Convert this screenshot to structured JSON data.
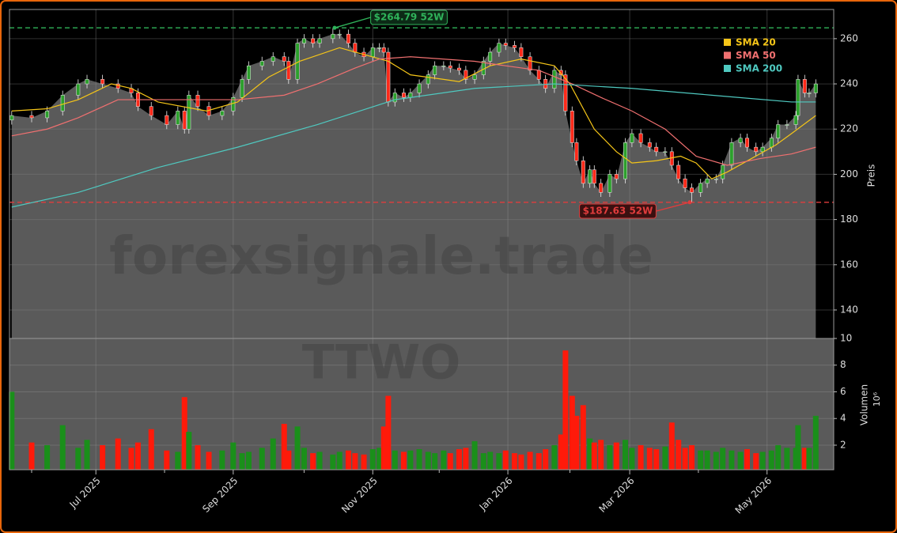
{
  "chart_data": {
    "type": "candlestick",
    "ylabel": "Preis",
    "volume_label": "Volumen",
    "volume_scale_label": "10⁶",
    "watermarks": [
      "forexsignale.trade",
      "TTWO"
    ],
    "up_color": "#2ca02c",
    "down_color": "#ff2a1a",
    "area_color": "#5a5a5a",
    "xlim": [
      0,
      372.1
    ],
    "xticks": [
      {
        "value": 39,
        "label": "Jul 2025"
      },
      {
        "value": 101,
        "label": "Sep 2025"
      },
      {
        "value": 164,
        "label": "Nov 2025"
      },
      {
        "value": 225,
        "label": "Jan 2026"
      },
      {
        "value": 280,
        "label": "Mar 2026"
      },
      {
        "value": 342,
        "label": "May 2026"
      }
    ],
    "xminorticks": [
      10,
      70,
      133,
      194,
      253,
      311
    ],
    "ylim": [
      127.4,
      272.9
    ],
    "yticks": [
      140,
      160,
      180,
      200,
      220,
      240,
      260
    ],
    "volume_ylim": [
      0.16,
      10
    ],
    "volume_yticks": [
      2,
      4,
      6,
      8,
      10
    ],
    "grid": true,
    "x": [
      1,
      10,
      17,
      24,
      31,
      35,
      42,
      49,
      55,
      58,
      64,
      71,
      76,
      79,
      81,
      85,
      90,
      96,
      101,
      105,
      108,
      114,
      119,
      124,
      126,
      130,
      133,
      137,
      140,
      146,
      149,
      153,
      156,
      160,
      164,
      167,
      169,
      171,
      174,
      178,
      181,
      185,
      189,
      192,
      196,
      199,
      203,
      206,
      210,
      214,
      217,
      221,
      224,
      228,
      231,
      235,
      239,
      242,
      246,
      249,
      251,
      254,
      256,
      259,
      262,
      264,
      267,
      271,
      274,
      278,
      281,
      285,
      289,
      292,
      296,
      299,
      302,
      305,
      308,
      312,
      315,
      319,
      322,
      326,
      330,
      333,
      337,
      340,
      344,
      347,
      351,
      355,
      356,
      359,
      361,
      364
    ],
    "open": [
      224,
      226,
      225,
      228,
      235,
      240,
      242,
      240,
      238,
      236,
      230,
      226,
      222,
      228,
      220,
      235,
      230,
      226,
      228,
      234,
      242,
      248,
      250,
      252,
      250,
      242,
      258,
      260,
      258,
      260,
      262,
      262,
      258,
      254,
      252,
      256,
      256,
      254,
      232,
      236,
      234,
      236,
      240,
      244,
      248,
      248,
      247,
      246,
      242,
      244,
      250,
      254,
      258,
      257,
      256,
      252,
      246,
      242,
      238,
      246,
      244,
      228,
      214,
      206,
      196,
      202,
      196,
      192,
      200,
      198,
      214,
      218,
      214,
      212,
      210,
      210,
      204,
      198,
      194,
      192,
      196,
      198,
      198,
      204,
      214,
      216,
      212,
      210,
      212,
      216,
      222,
      222,
      226,
      242,
      236,
      236
    ],
    "high": [
      228,
      228,
      230,
      237,
      242,
      244,
      244,
      242,
      240,
      238,
      232,
      228,
      230,
      230,
      237,
      237,
      232,
      230,
      236,
      244,
      250,
      252,
      254,
      254,
      252,
      260,
      262,
      262,
      262,
      264.79,
      264,
      264,
      260,
      256,
      258,
      258,
      258,
      256,
      238,
      238,
      238,
      242,
      246,
      250,
      250,
      250,
      249,
      248,
      246,
      252,
      256,
      260,
      260,
      259,
      258,
      254,
      248,
      244,
      248,
      248,
      246,
      230,
      216,
      208,
      204,
      204,
      198,
      202,
      202,
      216,
      220,
      220,
      216,
      214,
      212,
      212,
      206,
      200,
      196,
      198,
      200,
      200,
      206,
      216,
      218,
      218,
      214,
      214,
      218,
      224,
      224,
      228,
      244,
      244,
      238,
      242
    ],
    "low": [
      222,
      223,
      223,
      226,
      233,
      238,
      238,
      236,
      234,
      228,
      224,
      220,
      220,
      218,
      218,
      228,
      224,
      224,
      226,
      232,
      240,
      246,
      248,
      248,
      240,
      240,
      256,
      256,
      256,
      258,
      260,
      256,
      252,
      250,
      250,
      254,
      252,
      230,
      230,
      232,
      232,
      234,
      238,
      242,
      246,
      245,
      244,
      240,
      240,
      242,
      248,
      252,
      255,
      254,
      250,
      244,
      240,
      236,
      236,
      242,
      226,
      212,
      204,
      194,
      194,
      194,
      190,
      190,
      196,
      196,
      212,
      212,
      210,
      208,
      208,
      202,
      196,
      192,
      187.63,
      190,
      194,
      196,
      196,
      202,
      212,
      210,
      208,
      208,
      210,
      214,
      220,
      220,
      224,
      234,
      234,
      234
    ],
    "close": [
      226,
      225,
      228,
      235,
      240,
      242,
      240,
      238,
      236,
      230,
      226,
      222,
      228,
      220,
      235,
      230,
      226,
      228,
      234,
      242,
      248,
      250,
      252,
      250,
      242,
      258,
      260,
      258,
      260,
      262,
      262,
      258,
      254,
      252,
      256,
      256,
      254,
      232,
      236,
      234,
      236,
      240,
      244,
      248,
      248,
      247,
      246,
      242,
      244,
      250,
      254,
      258,
      257,
      256,
      252,
      246,
      242,
      238,
      246,
      244,
      228,
      214,
      206,
      196,
      202,
      196,
      192,
      200,
      198,
      214,
      218,
      214,
      212,
      210,
      210,
      204,
      198,
      194,
      192,
      196,
      198,
      198,
      204,
      214,
      216,
      212,
      210,
      212,
      216,
      222,
      222,
      226,
      242,
      236,
      236,
      240
    ],
    "volume": [
      6.0,
      2.2,
      2.0,
      3.5,
      1.8,
      2.4,
      2.0,
      2.5,
      1.8,
      2.2,
      3.2,
      1.6,
      1.5,
      5.6,
      3.0,
      2.0,
      1.5,
      1.6,
      2.2,
      1.4,
      1.5,
      1.8,
      2.5,
      3.6,
      1.6,
      3.4,
      1.8,
      1.4,
      1.5,
      1.3,
      1.5,
      1.6,
      1.4,
      1.3,
      1.7,
      1.8,
      3.4,
      5.7,
      1.6,
      1.5,
      1.6,
      1.7,
      1.5,
      1.4,
      1.6,
      1.4,
      1.7,
      1.8,
      2.3,
      1.4,
      1.5,
      1.4,
      1.6,
      1.4,
      1.3,
      1.5,
      1.4,
      1.7,
      2.0,
      2.8,
      9.1,
      5.7,
      4.2,
      5.0,
      2.5,
      2.2,
      2.4,
      2.0,
      2.2,
      2.4,
      1.8,
      2.0,
      1.8,
      1.7,
      1.9,
      3.7,
      2.4,
      1.8,
      2.0,
      1.6,
      1.6,
      1.5,
      1.8,
      1.6,
      1.5,
      1.7,
      1.4,
      1.5,
      1.6,
      2.0,
      1.8,
      1.8,
      3.5,
      1.8,
      1.8,
      4.2
    ],
    "series": [
      {
        "name": "SMA 20",
        "color": "#f5c518",
        "x": [
          1,
          17,
          31,
          46,
          55,
          67,
          89,
          103,
          117,
          131,
          149,
          160,
          171,
          181,
          196,
          203,
          217,
          231,
          246,
          253,
          264,
          274,
          281,
          292,
          303,
          310,
          317,
          324,
          335,
          346,
          353,
          364
        ],
        "values": [
          228,
          229,
          233,
          240,
          238,
          232,
          228,
          232,
          243,
          250,
          256,
          253,
          250,
          244,
          242,
          241,
          248,
          251,
          248,
          240,
          220,
          210,
          205,
          206,
          208,
          205,
          198,
          201,
          207,
          213,
          218,
          226
        ]
      },
      {
        "name": "SMA 50",
        "color": "#f07070",
        "x": [
          1,
          17,
          31,
          49,
          67,
          103,
          124,
          139,
          156,
          167,
          181,
          210,
          224,
          239,
          254,
          267,
          281,
          296,
          310,
          324,
          339,
          353,
          364
        ],
        "values": [
          217,
          220,
          225,
          233,
          233,
          233,
          235,
          240,
          247,
          251,
          252,
          250,
          248,
          246,
          240,
          234,
          228,
          220,
          208,
          204,
          207,
          209,
          212
        ]
      },
      {
        "name": "SMA 200",
        "color": "#4fc9c0",
        "x": [
          1,
          31,
          67,
          103,
          139,
          174,
          210,
          246,
          281,
          317,
          353,
          364
        ],
        "values": [
          185.5,
          192,
          203,
          212,
          222,
          233,
          238,
          240,
          238,
          235,
          232,
          232
        ]
      }
    ],
    "legend": "upper right",
    "hlines": [
      {
        "value": 264.79,
        "label": "$264.79 52W",
        "color": "#2fb35a"
      },
      {
        "value": 187.63,
        "label": "$187.63 52W",
        "color": "#e03c3c"
      }
    ]
  }
}
